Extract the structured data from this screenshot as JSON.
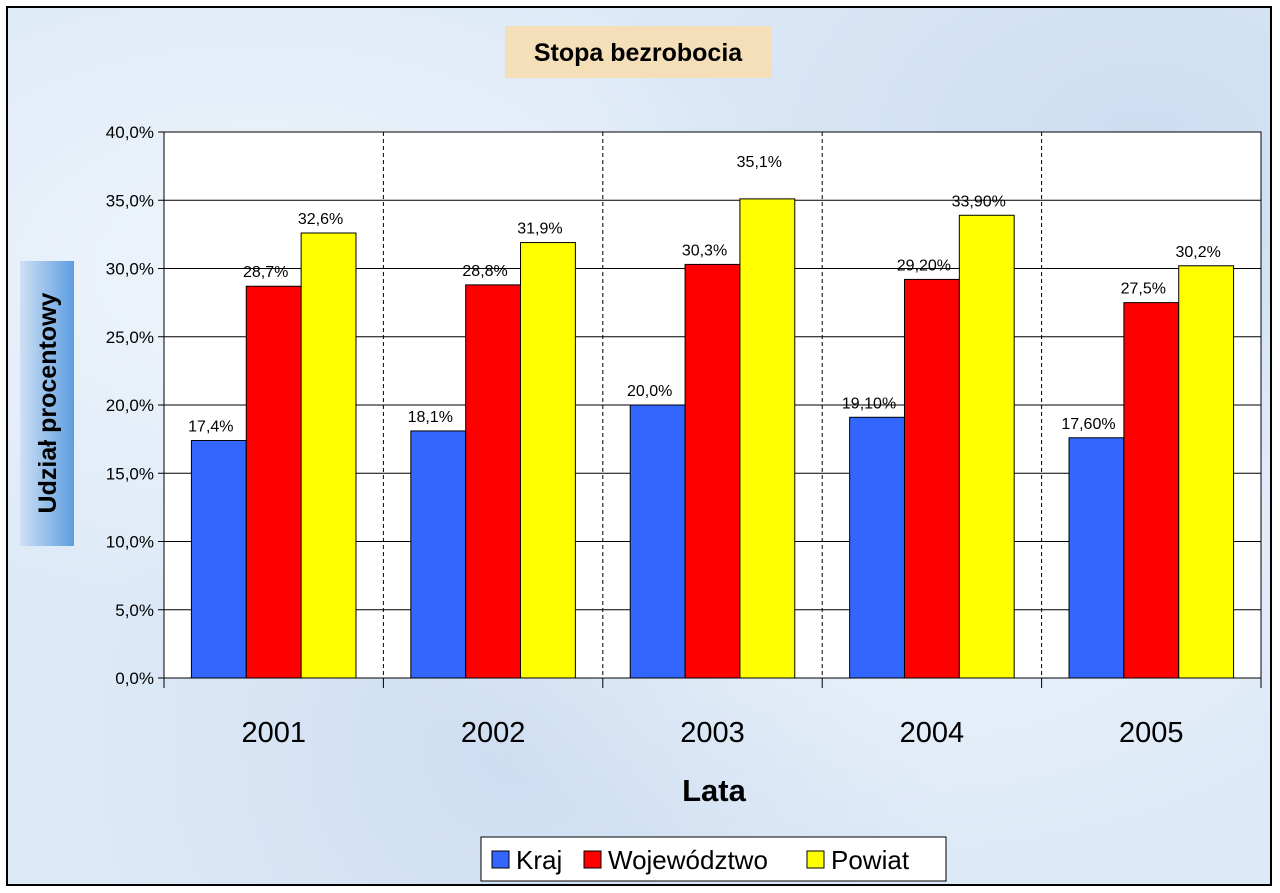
{
  "chart_data": {
    "type": "bar",
    "title": "Stopa bezrobocia",
    "xlabel": "Lata",
    "ylabel": "Udział procentowy",
    "categories": [
      "2001",
      "2002",
      "2003",
      "2004",
      "2005"
    ],
    "series": [
      {
        "name": "Kraj",
        "color": "#3366ff",
        "values": [
          17.4,
          18.1,
          20.0,
          19.1,
          17.6
        ],
        "labels": [
          "17,4%",
          "18,1%",
          "20,0%",
          "19,10%",
          "17,60%"
        ]
      },
      {
        "name": "Województwo",
        "color": "#ff0000",
        "values": [
          28.7,
          28.8,
          30.3,
          29.2,
          27.5
        ],
        "labels": [
          "28,7%",
          "28,8%",
          "30,3%",
          "29,20%",
          "27,5%"
        ]
      },
      {
        "name": "Powiat",
        "color": "#ffff00",
        "values": [
          32.6,
          31.9,
          35.1,
          33.9,
          30.2
        ],
        "labels": [
          "32,6%",
          "31,9%",
          "35,1%",
          "33,90%",
          "30,2%"
        ]
      }
    ],
    "ylim": [
      0,
      40
    ],
    "ytick_labels": [
      "0,0%",
      "5,0%",
      "10,0%",
      "15,0%",
      "20,0%",
      "25,0%",
      "30,0%",
      "35,0%",
      "40,0%"
    ],
    "grid": "horizontal-solid, vertical-dashed-between-categories",
    "legend_position": "bottom",
    "plot_background": "#ffffff",
    "title_background": "#f5dfb8",
    "ylabel_background": "#6fa8e6"
  }
}
